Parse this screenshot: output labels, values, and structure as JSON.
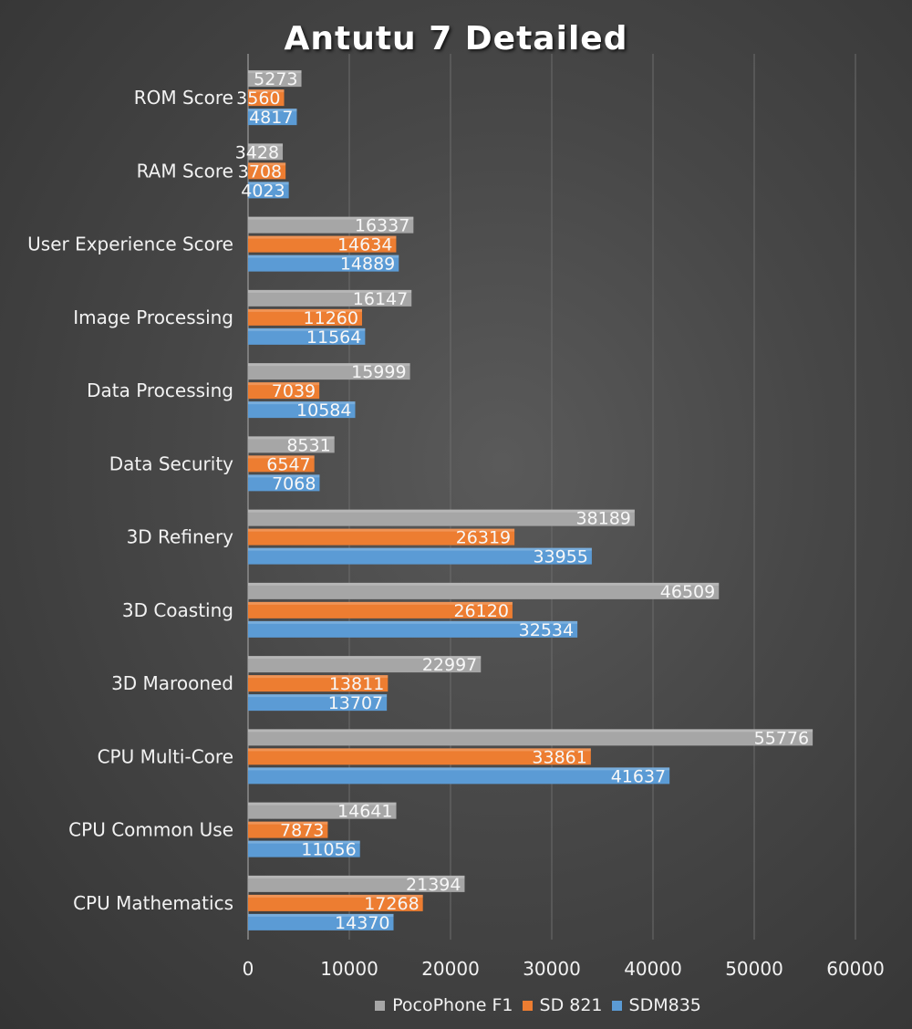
{
  "chart_data": {
    "type": "bar",
    "orientation": "horizontal",
    "title": "Antutu 7 Detailed",
    "categories": [
      "ROM Score",
      "RAM Score",
      "User Experience Score",
      "Image Processing",
      "Data Processing",
      "Data Security",
      "3D Refinery",
      "3D Coasting",
      "3D Marooned",
      "CPU Multi-Core",
      "CPU Common Use",
      "CPU Mathematics"
    ],
    "series": [
      {
        "name": "PocoPhone F1",
        "color": "#a6a6a6",
        "values": [
          5273,
          3428,
          16337,
          16147,
          15999,
          8531,
          38189,
          46509,
          22997,
          55776,
          14641,
          21394
        ]
      },
      {
        "name": "SD 821",
        "color": "#ed7d31",
        "values": [
          3560,
          3708,
          14634,
          11260,
          7039,
          6547,
          26319,
          26120,
          13811,
          33861,
          7873,
          17268
        ]
      },
      {
        "name": "SDM835",
        "color": "#5b9bd5",
        "values": [
          4817,
          4023,
          14889,
          11564,
          10584,
          7068,
          33955,
          32534,
          13707,
          41637,
          11056,
          14370
        ]
      }
    ],
    "xlim": [
      0,
      60000
    ],
    "x_ticks": [
      "0",
      "10000",
      "20000",
      "30000",
      "40000",
      "50000",
      "60000"
    ],
    "x_tick_values": [
      0,
      10000,
      20000,
      30000,
      40000,
      50000,
      60000
    ],
    "xlabel": "",
    "ylabel": "",
    "grid": true,
    "data_labels": true,
    "legend_position": "bottom"
  }
}
